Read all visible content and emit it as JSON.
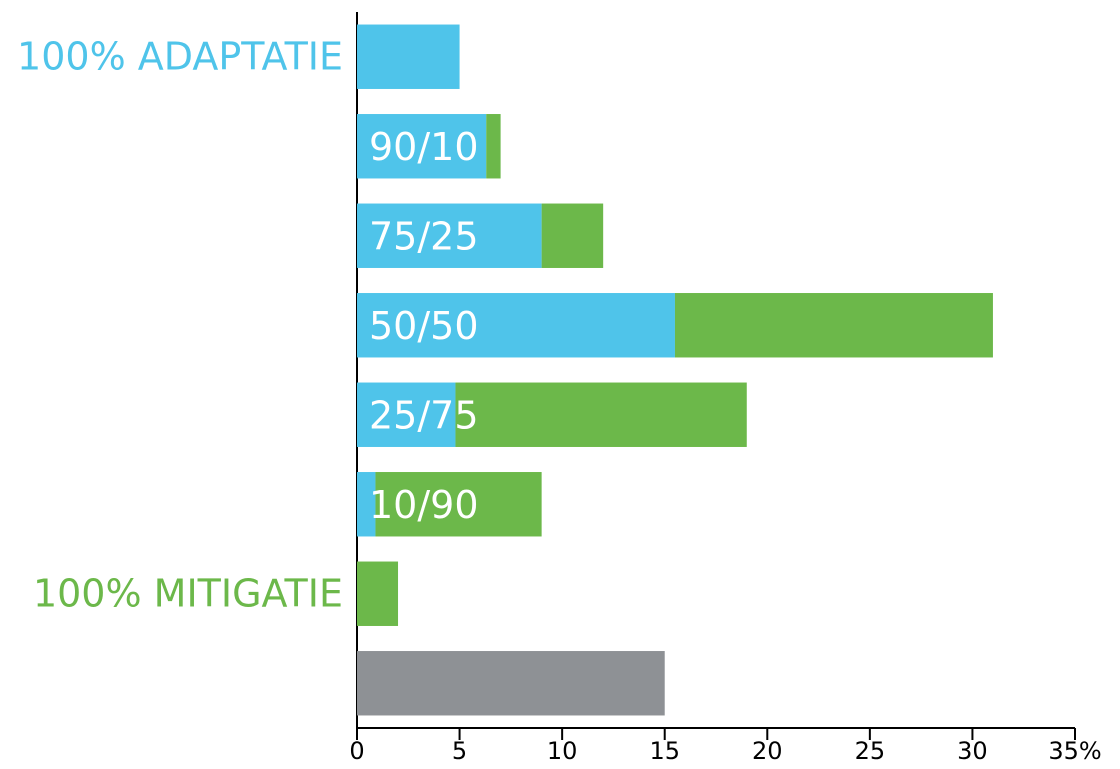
{
  "chart_data": {
    "type": "stacked_bar_horizontal",
    "categories": [
      "100% ADAPTATIE",
      "90/10",
      "75/25",
      "50/50",
      "25/75",
      "10/90",
      "100% MITIGATIE",
      null
    ],
    "series": [
      {
        "color": "#4fc4ea",
        "values": [
          5.0,
          6.3,
          9.0,
          15.5,
          4.8,
          0.9,
          null,
          null
        ]
      },
      {
        "color": "#6cb84a",
        "values": [
          null,
          0.7,
          3.0,
          15.5,
          14.2,
          8.1,
          2.0,
          null
        ]
      },
      {
        "color": "#8e9195",
        "values": [
          null,
          null,
          null,
          null,
          null,
          null,
          null,
          15.0
        ]
      }
    ],
    "xlim": [
      0,
      35
    ],
    "xticks": [
      0,
      5,
      10,
      15,
      20,
      25,
      30,
      {
        "value": 35,
        "label": "35%"
      }
    ],
    "grid": false
  }
}
